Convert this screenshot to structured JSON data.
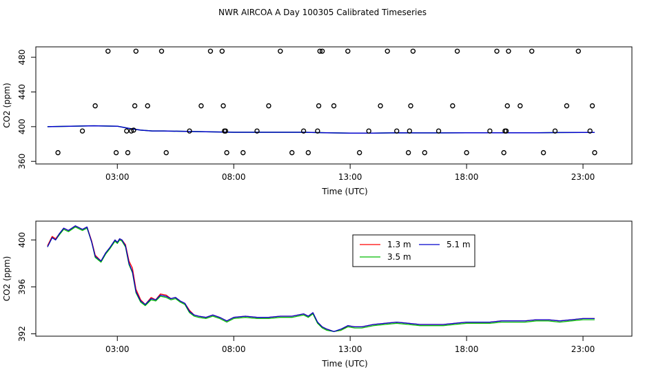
{
  "figure_title": "NWR AIRCOA A  Day 100305  Calibrated Timeseries",
  "chart_data": [
    {
      "type": "scatter",
      "title": "",
      "xlabel": "Time (UTC)",
      "ylabel": "CO2 (ppm)",
      "xlim": [
        -0.5,
        25.1
      ],
      "ylim": [
        357,
        492
      ],
      "xticks": [
        3,
        8,
        13,
        18,
        23
      ],
      "xtick_labels": [
        "03:00",
        "08:00",
        "13:00",
        "18:00",
        "23:00"
      ],
      "yticks": [
        360,
        400,
        440,
        480
      ],
      "ytick_labels": [
        "360",
        "400",
        "440",
        "480"
      ],
      "points": {
        "x": [
          0.45,
          1.5,
          2.05,
          2.6,
          2.95,
          3.4,
          3.45,
          3.6,
          3.7,
          3.75,
          3.8,
          4.3,
          4.9,
          5.1,
          6.1,
          6.6,
          7.0,
          7.5,
          7.55,
          7.6,
          7.65,
          7.7,
          8.4,
          9.0,
          9.5,
          10.0,
          10.5,
          11.0,
          11.2,
          11.6,
          11.65,
          11.7,
          11.8,
          12.3,
          12.9,
          13.4,
          13.8,
          14.3,
          14.6,
          15.0,
          15.5,
          15.55,
          15.6,
          15.7,
          16.2,
          16.8,
          17.4,
          17.6,
          18.0,
          19.0,
          19.3,
          19.6,
          19.65,
          19.7,
          19.75,
          19.8,
          20.3,
          20.8,
          21.3,
          21.8,
          22.3,
          22.8,
          23.3,
          23.4,
          23.5
        ],
        "y": [
          370,
          395,
          424,
          487,
          370,
          395,
          370,
          395,
          396,
          424,
          487,
          424,
          487,
          370,
          395,
          424,
          487,
          487,
          424,
          395,
          395,
          370,
          370,
          395,
          424,
          487,
          370,
          395,
          370,
          395,
          424,
          487,
          487,
          424,
          487,
          370,
          395,
          424,
          487,
          395,
          370,
          395,
          424,
          487,
          370,
          395,
          424,
          487,
          370,
          395,
          487,
          370,
          395,
          395,
          424,
          487,
          424,
          487,
          370,
          395,
          424,
          487,
          395,
          424,
          370
        ]
      },
      "series": [
        {
          "name": "green",
          "color": "#00bb00",
          "x": [
            0,
            1,
            2,
            3,
            3.5,
            4,
            4.5,
            5,
            6,
            7,
            8,
            9,
            10,
            11,
            12,
            13,
            14,
            15,
            16,
            17,
            18,
            19,
            20,
            21,
            22,
            23,
            23.5
          ],
          "values": [
            400,
            400.5,
            401,
            400.5,
            398,
            396,
            395,
            395,
            394.5,
            394,
            393.5,
            393.5,
            393.5,
            393.5,
            393,
            392.5,
            392.5,
            393,
            392.8,
            392.8,
            393,
            393,
            393,
            393,
            393.2,
            393.3,
            393.3
          ]
        },
        {
          "name": "blue",
          "color": "#0000cc",
          "x": [
            0,
            1,
            2,
            3,
            3.5,
            4,
            4.5,
            5,
            6,
            7,
            8,
            9,
            10,
            11,
            12,
            13,
            14,
            15,
            16,
            17,
            18,
            19,
            20,
            21,
            22,
            23,
            23.5
          ],
          "values": [
            400,
            400.5,
            401,
            400.5,
            398,
            396,
            395,
            395,
            394.5,
            394,
            393.5,
            393.5,
            393.5,
            393.5,
            393,
            392.5,
            392.5,
            393,
            392.8,
            392.8,
            393,
            393,
            393,
            393,
            393.2,
            393.3,
            393.3
          ]
        }
      ]
    },
    {
      "type": "line",
      "title": "",
      "xlabel": "Time (UTC)",
      "ylabel": "CO2 (ppm)",
      "xlim": [
        -0.5,
        25.1
      ],
      "ylim": [
        391.8,
        401.6
      ],
      "xticks": [
        3,
        8,
        13,
        18,
        23
      ],
      "xtick_labels": [
        "03:00",
        "08:00",
        "13:00",
        "18:00",
        "23:00"
      ],
      "yticks": [
        392,
        396,
        400
      ],
      "ytick_labels": [
        "392",
        "396",
        "400"
      ],
      "legend": [
        {
          "label": "1.3 m",
          "color": "#ff0000"
        },
        {
          "label": "3.5 m",
          "color": "#00bb00"
        },
        {
          "label": "5.1 m",
          "color": "#0000cc"
        }
      ],
      "series": [
        {
          "name": "1.3 m",
          "color": "#ff0000",
          "x": [
            0,
            0.2,
            0.35,
            0.5,
            0.7,
            0.9,
            1.2,
            1.5,
            1.7,
            1.9,
            2.05,
            2.3,
            2.5,
            2.7,
            2.9,
            3.0,
            3.1,
            3.2,
            3.35,
            3.5,
            3.65,
            3.8,
            4.0,
            4.2,
            4.45,
            4.65,
            4.85,
            5.1,
            5.3,
            5.5,
            5.7,
            5.9,
            6.1,
            6.3,
            6.5,
            6.8,
            7.1,
            7.4,
            7.7,
            8.0,
            8.5,
            9.0,
            9.5,
            10.0,
            10.5,
            11.0,
            11.2,
            11.4,
            11.6,
            11.8,
            12.0,
            12.3,
            12.6,
            12.9,
            13.2,
            13.5,
            14.0,
            14.5,
            15.0,
            15.5,
            16.0,
            16.5,
            17.0,
            17.5,
            18.0,
            18.5,
            19.0,
            19.5,
            20.0,
            20.5,
            21.0,
            21.5,
            22.0,
            22.5,
            23.0,
            23.5
          ],
          "values": [
            399.5,
            400.3,
            400.1,
            400.5,
            401.0,
            400.8,
            401.2,
            400.9,
            401.1,
            399.9,
            398.7,
            398.2,
            398.9,
            399.4,
            400.0,
            399.8,
            400.1,
            400.0,
            399.6,
            398.2,
            397.6,
            395.8,
            394.9,
            394.5,
            395.1,
            394.9,
            395.4,
            395.3,
            395.0,
            395.1,
            394.8,
            394.6,
            394.0,
            393.6,
            393.5,
            393.4,
            393.6,
            393.4,
            393.1,
            393.4,
            393.5,
            393.4,
            393.4,
            393.5,
            393.5,
            393.7,
            393.5,
            393.8,
            393.0,
            392.6,
            392.4,
            392.2,
            392.3,
            392.7,
            392.6,
            392.6,
            392.8,
            392.9,
            393.0,
            392.9,
            392.8,
            392.8,
            392.8,
            392.9,
            393.0,
            393.0,
            393.0,
            393.1,
            393.1,
            393.1,
            393.2,
            393.2,
            393.1,
            393.2,
            393.3,
            393.3
          ]
        },
        {
          "name": "3.5 m",
          "color": "#00bb00",
          "x": [
            0,
            0.2,
            0.35,
            0.5,
            0.7,
            0.9,
            1.2,
            1.5,
            1.7,
            1.9,
            2.05,
            2.3,
            2.5,
            2.7,
            2.9,
            3.0,
            3.1,
            3.2,
            3.35,
            3.5,
            3.65,
            3.8,
            4.0,
            4.2,
            4.45,
            4.65,
            4.85,
            5.1,
            5.3,
            5.5,
            5.7,
            5.9,
            6.1,
            6.3,
            6.5,
            6.8,
            7.1,
            7.4,
            7.7,
            8.0,
            8.5,
            9.0,
            9.5,
            10.0,
            10.5,
            11.0,
            11.2,
            11.4,
            11.6,
            11.8,
            12.0,
            12.3,
            12.6,
            12.9,
            13.2,
            13.5,
            14.0,
            14.5,
            15.0,
            15.5,
            16.0,
            16.5,
            17.0,
            17.5,
            18.0,
            18.5,
            19.0,
            19.5,
            20.0,
            20.5,
            21.0,
            21.5,
            22.0,
            22.5,
            23.0,
            23.5
          ],
          "values": [
            399.4,
            400.2,
            400.0,
            400.4,
            400.9,
            400.7,
            401.1,
            400.8,
            401.0,
            399.8,
            398.5,
            398.1,
            398.8,
            399.3,
            399.9,
            399.7,
            400.0,
            399.9,
            399.4,
            397.9,
            397.2,
            395.5,
            394.7,
            394.4,
            394.9,
            394.8,
            395.2,
            395.1,
            394.9,
            395.0,
            394.7,
            394.5,
            393.8,
            393.5,
            393.4,
            393.3,
            393.5,
            393.3,
            393.0,
            393.3,
            393.4,
            393.3,
            393.3,
            393.4,
            393.4,
            393.6,
            393.4,
            393.7,
            392.9,
            392.5,
            392.3,
            392.2,
            392.3,
            392.6,
            392.5,
            392.5,
            392.7,
            392.8,
            392.9,
            392.8,
            392.7,
            392.7,
            392.7,
            392.8,
            392.9,
            392.9,
            392.9,
            393.0,
            393.0,
            393.0,
            393.1,
            393.1,
            393.0,
            393.1,
            393.2,
            393.2
          ]
        },
        {
          "name": "5.1 m",
          "color": "#0000cc",
          "x": [
            0,
            0.2,
            0.35,
            0.5,
            0.7,
            0.9,
            1.2,
            1.5,
            1.7,
            1.9,
            2.05,
            2.3,
            2.5,
            2.7,
            2.9,
            3.0,
            3.1,
            3.2,
            3.35,
            3.5,
            3.65,
            3.8,
            4.0,
            4.2,
            4.45,
            4.65,
            4.85,
            5.1,
            5.3,
            5.5,
            5.7,
            5.9,
            6.1,
            6.3,
            6.5,
            6.8,
            7.1,
            7.4,
            7.7,
            8.0,
            8.5,
            9.0,
            9.5,
            10.0,
            10.5,
            11.0,
            11.2,
            11.4,
            11.6,
            11.8,
            12.0,
            12.3,
            12.6,
            12.9,
            13.2,
            13.5,
            14.0,
            14.5,
            15.0,
            15.5,
            16.0,
            16.5,
            17.0,
            17.5,
            18.0,
            18.5,
            19.0,
            19.5,
            20.0,
            20.5,
            21.0,
            21.5,
            22.0,
            22.5,
            23.0,
            23.5
          ],
          "values": [
            399.4,
            400.2,
            400.0,
            400.5,
            401.0,
            400.8,
            401.2,
            400.9,
            401.1,
            399.8,
            398.6,
            398.2,
            398.9,
            399.4,
            400.0,
            399.8,
            400.1,
            400.0,
            399.5,
            398.0,
            397.3,
            395.6,
            394.8,
            394.5,
            395.0,
            394.9,
            395.3,
            395.2,
            395.0,
            395.1,
            394.8,
            394.6,
            393.9,
            393.6,
            393.5,
            393.4,
            393.6,
            393.4,
            393.1,
            393.4,
            393.5,
            393.4,
            393.4,
            393.5,
            393.5,
            393.7,
            393.5,
            393.8,
            393.0,
            392.6,
            392.4,
            392.2,
            392.4,
            392.7,
            392.6,
            392.6,
            392.8,
            392.9,
            393.0,
            392.9,
            392.8,
            392.8,
            392.8,
            392.9,
            393.0,
            393.0,
            393.0,
            393.1,
            393.1,
            393.1,
            393.2,
            393.2,
            393.1,
            393.2,
            393.3,
            393.3
          ]
        }
      ]
    }
  ]
}
